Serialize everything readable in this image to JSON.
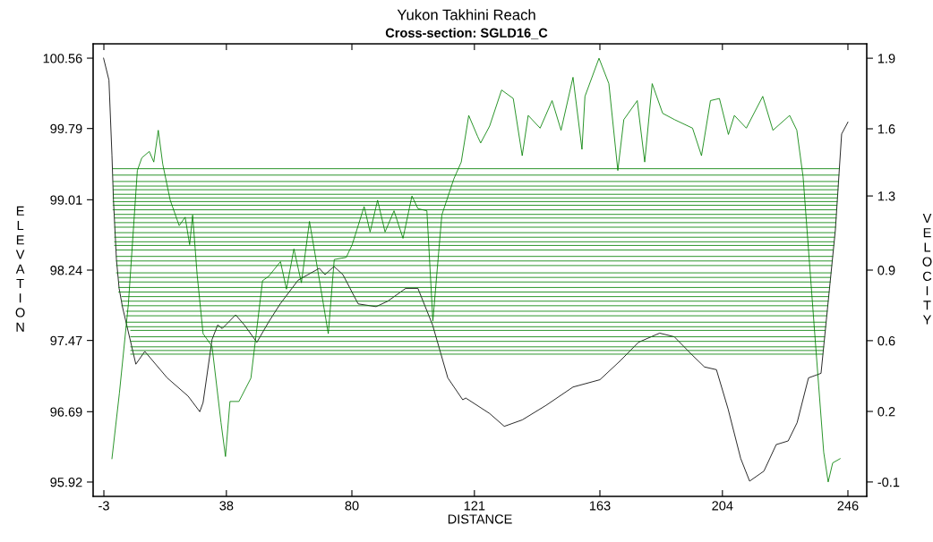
{
  "chart_data": {
    "type": "line",
    "title": "Yukon Takhini Reach",
    "subtitle": "Cross-section: SGLD16_C",
    "xlabel": "DISTANCE",
    "ylabel": "ELEVATION",
    "y2label": "VELOCITY",
    "xlim": [
      -6.6,
      252.3
    ],
    "xticks": [
      -3,
      38,
      80,
      121,
      163,
      204,
      246
    ],
    "ylim": [
      95.763,
      100.717
    ],
    "yticks": [
      95.92,
      96.69,
      97.47,
      98.24,
      99.01,
      99.79,
      100.56
    ],
    "y2lim": [
      -0.168,
      1.968
    ],
    "y2ticks": [
      -0.1,
      {
        "value": 0.233,
        "label": "0.2"
      },
      {
        "value": 0.567,
        "label": "0.6"
      },
      0.9,
      {
        "value": 1.25,
        "label": "1.3"
      },
      {
        "value": 1.567,
        "label": "1.6"
      },
      1.9
    ],
    "grid": false,
    "marker": "none",
    "line_style": "solid",
    "series": [
      {
        "axis": "y",
        "color": "#000000",
        "x": [
          -3.1,
          -1.3,
          -0.3,
          0.2,
          1.2,
          2.1,
          3.2,
          7.7,
          10.7,
          18.2,
          25.2,
          29.1,
          30.2,
          33.2,
          35.1,
          36.6,
          41.1,
          44.0,
          48.2,
          52.1,
          56.0,
          62.0,
          69.1,
          71.0,
          74.0,
          77.0,
          82.1,
          88.1,
          92.0,
          98.0,
          102.1,
          107.0,
          112.1,
          117.1,
          118.1,
          126.1,
          131.0,
          137.0,
          145.0,
          154.0,
          163.0,
          169.9,
          175.9,
          183.0,
          187.9,
          193.9,
          198.0,
          202.0,
          205.9,
          210.1,
          213.1,
          217.9,
          222.0,
          226.0,
          229.0,
          232.8,
          237.0,
          238.8,
          241.8,
          243.9,
          246.0
        ],
        "values": [
          100.56,
          100.32,
          99.5,
          99.01,
          98.36,
          98.04,
          97.84,
          97.21,
          97.35,
          97.06,
          96.86,
          96.69,
          96.79,
          97.48,
          97.64,
          97.6,
          97.75,
          97.64,
          97.45,
          97.67,
          97.87,
          98.13,
          98.26,
          98.19,
          98.28,
          98.19,
          97.87,
          97.84,
          97.9,
          98.04,
          98.04,
          97.64,
          97.06,
          96.82,
          96.84,
          96.67,
          96.53,
          96.6,
          96.76,
          96.96,
          97.04,
          97.25,
          97.45,
          97.55,
          97.51,
          97.31,
          97.18,
          97.15,
          96.72,
          96.18,
          95.93,
          96.04,
          96.33,
          96.37,
          96.57,
          97.06,
          97.11,
          97.7,
          98.68,
          99.73,
          99.86
        ]
      },
      {
        "axis": "y",
        "color": "#008000",
        "x": [
          0.1,
          243.1
        ],
        "values": [
          99.35,
          99.35
        ]
      },
      {
        "axis": "y",
        "color": "#008000",
        "x": [
          0.1,
          243.0
        ],
        "values": [
          99.28,
          99.28
        ]
      },
      {
        "axis": "y",
        "color": "#008000",
        "x": [
          0.1,
          242.9
        ],
        "values": [
          99.21,
          99.21
        ]
      },
      {
        "axis": "y",
        "color": "#008000",
        "x": [
          0.1,
          242.8
        ],
        "values": [
          99.16,
          99.16
        ]
      },
      {
        "axis": "y",
        "color": "#008000",
        "x": [
          0.1,
          242.7
        ],
        "values": [
          99.12,
          99.12
        ]
      },
      {
        "axis": "y",
        "color": "#008000",
        "x": [
          0.1,
          242.6
        ],
        "values": [
          99.07,
          99.07
        ]
      },
      {
        "axis": "y",
        "color": "#008000",
        "x": [
          0.1,
          242.5
        ],
        "values": [
          99.03,
          99.03
        ]
      },
      {
        "axis": "y",
        "color": "#008000",
        "x": [
          0.1,
          242.4
        ],
        "values": [
          98.99,
          98.99
        ]
      },
      {
        "axis": "y",
        "color": "#008000",
        "x": [
          0.1,
          242.3
        ],
        "values": [
          98.95,
          98.95
        ]
      },
      {
        "axis": "y",
        "color": "#008000",
        "x": [
          0.1,
          242.2
        ],
        "values": [
          98.9,
          98.9
        ]
      },
      {
        "axis": "y",
        "color": "#008000",
        "x": [
          0.6,
          242.1
        ],
        "values": [
          98.85,
          98.85
        ]
      },
      {
        "axis": "y",
        "color": "#008000",
        "x": [
          0.6,
          242.1
        ],
        "values": [
          98.81,
          98.81
        ]
      },
      {
        "axis": "y",
        "color": "#008000",
        "x": [
          0.6,
          242.0
        ],
        "values": [
          98.76,
          98.76
        ]
      },
      {
        "axis": "y",
        "color": "#008000",
        "x": [
          0.6,
          241.9
        ],
        "values": [
          98.71,
          98.71
        ]
      },
      {
        "axis": "y",
        "color": "#008000",
        "x": [
          0.6,
          241.7
        ],
        "values": [
          98.65,
          98.65
        ]
      },
      {
        "axis": "y",
        "color": "#008000",
        "x": [
          0.6,
          241.5
        ],
        "values": [
          98.6,
          98.6
        ]
      },
      {
        "axis": "y",
        "color": "#008000",
        "x": [
          0.6,
          241.4
        ],
        "values": [
          98.55,
          98.55
        ]
      },
      {
        "axis": "y",
        "color": "#008000",
        "x": [
          0.6,
          241.3
        ],
        "values": [
          98.51,
          98.51
        ]
      },
      {
        "axis": "y",
        "color": "#008000",
        "x": [
          1.2,
          241.1
        ],
        "values": [
          98.46,
          98.46
        ]
      },
      {
        "axis": "y",
        "color": "#008000",
        "x": [
          1.2,
          240.9
        ],
        "values": [
          98.39,
          98.39
        ]
      },
      {
        "axis": "y",
        "color": "#008000",
        "x": [
          1.2,
          240.8
        ],
        "values": [
          98.34,
          98.34
        ]
      },
      {
        "axis": "y",
        "color": "#008000",
        "x": [
          1.2,
          240.6
        ],
        "values": [
          98.29,
          98.29
        ]
      },
      {
        "axis": "y",
        "color": "#008000",
        "x": [
          1.2,
          240.4
        ],
        "values": [
          98.21,
          98.21
        ]
      },
      {
        "axis": "y",
        "color": "#008000",
        "x": [
          2.0,
          240.2
        ],
        "values": [
          98.16,
          98.16
        ]
      },
      {
        "axis": "y",
        "color": "#008000",
        "x": [
          2.0,
          240.1
        ],
        "values": [
          98.11,
          98.11
        ]
      },
      {
        "axis": "y",
        "color": "#008000",
        "x": [
          2.0,
          239.9
        ],
        "values": [
          98.05,
          98.05
        ]
      },
      {
        "axis": "y",
        "color": "#008000",
        "x": [
          2.0,
          239.7
        ],
        "values": [
          98.0,
          98.0
        ]
      },
      {
        "axis": "y",
        "color": "#008000",
        "x": [
          3.0,
          239.6
        ],
        "values": [
          97.95,
          97.95
        ]
      },
      {
        "axis": "y",
        "color": "#008000",
        "x": [
          3.0,
          239.4
        ],
        "values": [
          97.9,
          97.9
        ]
      },
      {
        "axis": "y",
        "color": "#008000",
        "x": [
          3.0,
          239.3
        ],
        "values": [
          97.85,
          97.85
        ]
      },
      {
        "axis": "y",
        "color": "#008000",
        "x": [
          4.5,
          239.1
        ],
        "values": [
          97.79,
          97.79
        ]
      },
      {
        "axis": "y",
        "color": "#008000",
        "x": [
          4.5,
          238.9
        ],
        "values": [
          97.74,
          97.74
        ]
      },
      {
        "axis": "y",
        "color": "#008000",
        "x": [
          4.5,
          238.7
        ],
        "values": [
          97.67,
          97.67
        ]
      },
      {
        "axis": "y",
        "color": "#008000",
        "x": [
          4.5,
          238.6
        ],
        "values": [
          97.62,
          97.62
        ]
      },
      {
        "axis": "y",
        "color": "#008000",
        "x": [
          6.0,
          238.4
        ],
        "values": [
          97.58,
          97.58
        ]
      },
      {
        "axis": "y",
        "color": "#008000",
        "x": [
          6.0,
          238.2
        ],
        "values": [
          97.51,
          97.51
        ]
      },
      {
        "axis": "y",
        "color": "#008000",
        "x": [
          6.0,
          238.1
        ],
        "values": [
          97.46,
          97.46
        ]
      },
      {
        "axis": "y",
        "color": "#008000",
        "x": [
          6.0,
          237.9
        ],
        "values": [
          97.4,
          97.4
        ]
      },
      {
        "axis": "y",
        "color": "#008000",
        "x": [
          6.0,
          237.8
        ],
        "values": [
          97.36,
          97.36
        ]
      },
      {
        "axis": "y",
        "color": "#008000",
        "x": [
          6.0,
          237.6
        ],
        "values": [
          97.32,
          97.32
        ]
      },
      {
        "axis": "y2",
        "color": "#008000",
        "x": [
          -0.3,
          2.2,
          5.2,
          8.2,
          9.7,
          12.2,
          13.7,
          15.2,
          16.7,
          19.2,
          22.2,
          24.2,
          25.7,
          26.7,
          28.2,
          30.2,
          33.2,
          36.2,
          37.7,
          39.2,
          42.2,
          46.2,
          50.1,
          52.1,
          56.1,
          58.1,
          60.6,
          63.1,
          65.8,
          68.1,
          72.1,
          74.1,
          78.1,
          80.1,
          84.1,
          86.1,
          88.6,
          91.1,
          94.1,
          97.1,
          100.1,
          102.1,
          105.1,
          107.1,
          110.1,
          114.1,
          116.6,
          119.1,
          122.1,
          123.1,
          126.1,
          130.1,
          134.0,
          137.0,
          139.0,
          143.0,
          147.0,
          150.0,
          154.0,
          157.0,
          158.0,
          162.7,
          166.0,
          169.0,
          171.0,
          175.5,
          178.0,
          180.5,
          184.0,
          188.0,
          194.0,
          197.0,
          200.0,
          203.0,
          206.0,
          208.0,
          212.0,
          217.5,
          220.9,
          226.5,
          228.9,
          231.0,
          234.9,
          237.9,
          239.4,
          240.9,
          243.4
        ],
        "values": [
          0.01,
          0.32,
          0.74,
          1.37,
          1.43,
          1.46,
          1.41,
          1.56,
          1.4,
          1.23,
          1.11,
          1.15,
          1.02,
          1.16,
          0.88,
          0.6,
          0.54,
          0.18,
          0.02,
          0.28,
          0.28,
          0.39,
          0.85,
          0.87,
          0.94,
          0.81,
          1.0,
          0.84,
          1.13,
          0.94,
          0.6,
          0.95,
          0.96,
          1.02,
          1.2,
          1.08,
          1.23,
          1.08,
          1.18,
          1.05,
          1.25,
          1.19,
          1.18,
          0.66,
          1.16,
          1.33,
          1.41,
          1.63,
          1.53,
          1.5,
          1.58,
          1.75,
          1.71,
          1.44,
          1.63,
          1.57,
          1.7,
          1.56,
          1.81,
          1.47,
          1.72,
          1.9,
          1.78,
          1.37,
          1.61,
          1.7,
          1.41,
          1.78,
          1.64,
          1.61,
          1.57,
          1.44,
          1.7,
          1.71,
          1.54,
          1.63,
          1.57,
          1.72,
          1.56,
          1.63,
          1.56,
          1.34,
          0.6,
          0.04,
          -0.1,
          -0.01,
          0.01
        ]
      }
    ]
  }
}
